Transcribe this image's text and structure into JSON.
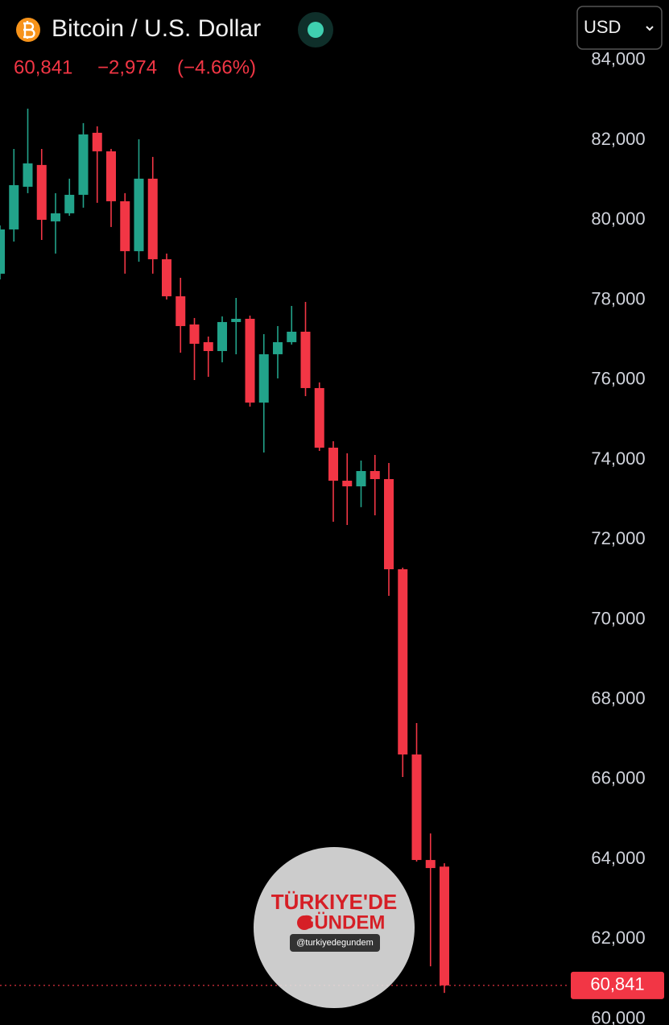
{
  "chart_data": {
    "type": "candlestick",
    "title": "Bitcoin / U.S. Dollar",
    "currency": "USD",
    "price": {
      "value": 60841,
      "label": "60,841"
    },
    "change": {
      "value": -2974,
      "label": "−2,974"
    },
    "change_pct": {
      "value": -4.66,
      "label": "(−4.66%)"
    },
    "up_color": "#22a38a",
    "down_color": "#f23645",
    "open": [
      78658,
      79766,
      80835,
      81380,
      79968,
      80170,
      80633,
      82186,
      81722,
      80472,
      79222,
      81037,
      79020,
      78093,
      77387,
      76944,
      76722,
      77448,
      77529,
      75432,
      76642,
      76944,
      77206,
      75795,
      74303,
      73476,
      73335,
      73718,
      73516,
      71259,
      66622,
      63981,
      63815
    ],
    "high": [
      79867,
      81782,
      82790,
      81782,
      80674,
      81037,
      82428,
      82347,
      81782,
      80674,
      82024,
      81581,
      79162,
      78557,
      77549,
      77085,
      77589,
      78053,
      77609,
      77146,
      77347,
      77851,
      77952,
      75936,
      74464,
      74162,
      73980,
      74122,
      73919,
      71299,
      67408,
      64646,
      63900
    ],
    "low": [
      78516,
      79464,
      80674,
      79504,
      79162,
      80109,
      80311,
      80432,
      79827,
      78658,
      78960,
      78658,
      78012,
      76682,
      75996,
      76077,
      76440,
      76642,
      75331,
      74182,
      76037,
      76884,
      75593,
      74222,
      72448,
      72367,
      72814,
      72610,
      70594,
      66058,
      63941,
      61320,
      60655
    ],
    "close": [
      79766,
      80875,
      81420,
      80008,
      80170,
      80633,
      82145,
      81722,
      80472,
      79222,
      81037,
      79020,
      78093,
      77347,
      76904,
      76722,
      77448,
      77529,
      75432,
      76642,
      76944,
      77206,
      75795,
      74303,
      73476,
      73335,
      73718,
      73516,
      71259,
      66622,
      63981,
      63779,
      60841
    ],
    "ylim": [
      59850,
      85510
    ],
    "yticks": [
      {
        "value": 60000,
        "label": "60,000"
      },
      {
        "value": 62000,
        "label": "62,000"
      },
      {
        "value": 64000,
        "label": "64,000"
      },
      {
        "value": 66000,
        "label": "66,000"
      },
      {
        "value": 68000,
        "label": "68,000"
      },
      {
        "value": 70000,
        "label": "70,000"
      },
      {
        "value": 72000,
        "label": "72,000"
      },
      {
        "value": 74000,
        "label": "74,000"
      },
      {
        "value": 76000,
        "label": "76,000"
      },
      {
        "value": 78000,
        "label": "78,000"
      },
      {
        "value": 80000,
        "label": "80,000"
      },
      {
        "value": 82000,
        "label": "82,000"
      },
      {
        "value": 84000,
        "label": "84,000"
      }
    ],
    "grid": false
  },
  "watermark": {
    "line1": "TÜRKIYE'DE",
    "line2": "GÜNDEM",
    "handle": "@turkiyedegundem"
  }
}
